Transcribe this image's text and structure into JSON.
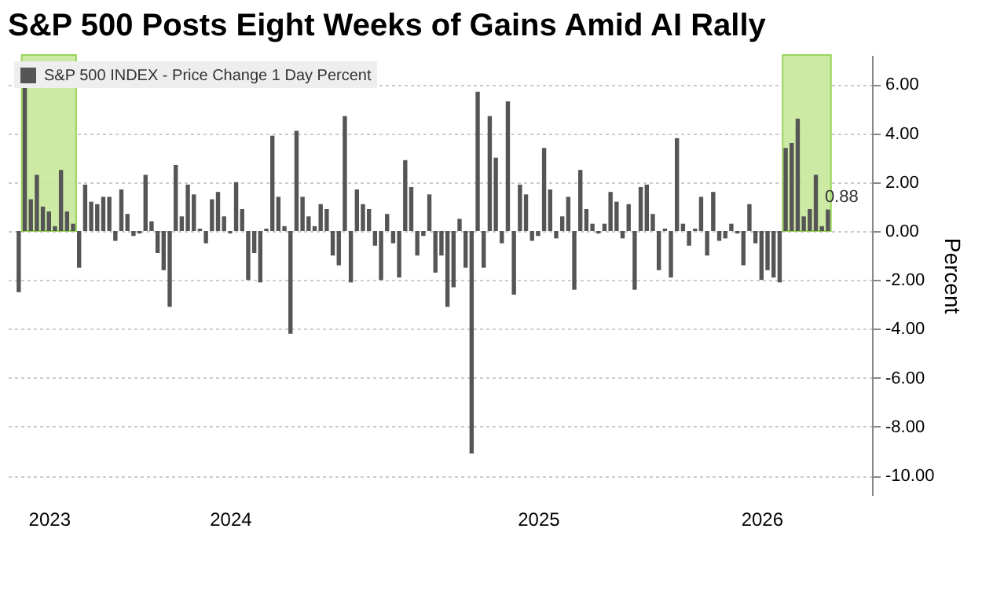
{
  "chart_data": {
    "type": "bar",
    "title": "S&P 500 Posts Eight Weeks of Gains Amid AI Rally",
    "ylabel": "Percent",
    "categories": [
      null,
      null,
      null,
      null,
      null,
      "2023",
      null,
      null,
      null,
      null,
      null,
      null,
      null,
      null,
      null,
      null,
      null,
      null,
      null,
      null,
      null,
      null,
      null,
      null,
      null,
      null,
      null,
      null,
      null,
      null,
      null,
      null,
      null,
      null,
      null,
      "2024",
      null,
      null,
      null,
      null,
      null,
      null,
      null,
      null,
      null,
      null,
      null,
      null,
      null,
      null,
      null,
      null,
      null,
      null,
      null,
      null,
      null,
      null,
      null,
      null,
      null,
      null,
      null,
      null,
      null,
      null,
      null,
      null,
      null,
      null,
      null,
      null,
      null,
      null,
      null,
      null,
      null,
      null,
      null,
      null,
      null,
      null,
      null,
      null,
      null,
      null,
      "2025",
      null,
      null,
      null,
      null,
      null,
      null,
      null,
      null,
      null,
      null,
      null,
      null,
      null,
      null,
      null,
      null,
      null,
      null,
      null,
      null,
      null,
      null,
      null,
      null,
      null,
      null,
      null,
      null,
      null,
      null,
      null,
      null,
      null,
      null,
      null,
      null,
      "2026",
      null,
      null,
      null,
      null,
      null,
      null,
      null,
      null,
      null,
      null,
      null
    ],
    "series": [
      {
        "name": "S&P 500 INDEX - Price Change 1 Day Percent",
        "color": "#555555",
        "values": [
          -2.5,
          5.9,
          1.3,
          2.3,
          1.0,
          0.8,
          0.2,
          2.5,
          0.8,
          0.3,
          -1.5,
          1.9,
          1.2,
          1.1,
          1.4,
          1.4,
          -0.4,
          1.7,
          0.7,
          -0.2,
          -0.1,
          2.3,
          0.4,
          -0.9,
          -1.6,
          -3.1,
          2.7,
          0.6,
          1.9,
          1.5,
          0.1,
          -0.5,
          1.3,
          1.6,
          0.6,
          -0.1,
          2.0,
          0.9,
          -2.0,
          -0.9,
          -2.1,
          0.1,
          3.9,
          1.4,
          0.2,
          -4.2,
          4.1,
          1.4,
          0.6,
          0.2,
          1.1,
          0.9,
          -1.0,
          -1.4,
          4.7,
          -2.1,
          1.7,
          1.1,
          0.9,
          -0.6,
          -2.0,
          0.7,
          -0.5,
          -1.9,
          2.9,
          1.8,
          -1.0,
          -0.2,
          1.5,
          -1.7,
          -1.0,
          -3.1,
          -2.3,
          0.5,
          -1.5,
          -9.1,
          5.7,
          -1.5,
          4.7,
          3.0,
          -0.5,
          5.3,
          -2.6,
          1.9,
          1.5,
          -0.4,
          -0.2,
          3.4,
          1.7,
          -0.3,
          0.6,
          1.4,
          -2.4,
          2.5,
          0.9,
          0.3,
          -0.1,
          0.3,
          1.6,
          1.2,
          -0.3,
          1.1,
          -2.4,
          1.8,
          1.9,
          0.7,
          -1.6,
          0.1,
          -1.9,
          3.8,
          0.3,
          -0.6,
          0.1,
          1.4,
          -1.0,
          1.6,
          -0.4,
          -0.3,
          0.3,
          -0.1,
          -1.4,
          1.1,
          -0.5,
          -2.0,
          -1.6,
          -1.9,
          -2.1,
          3.4,
          3.6,
          4.6,
          0.6,
          0.9,
          2.3,
          0.2,
          0.88
        ],
        "value_labels": [
          null,
          null,
          null,
          null,
          null,
          null,
          null,
          null,
          null,
          null,
          null,
          null,
          null,
          null,
          null,
          null,
          null,
          null,
          null,
          null,
          null,
          null,
          null,
          null,
          null,
          null,
          null,
          null,
          null,
          null,
          null,
          null,
          null,
          null,
          null,
          null,
          null,
          null,
          null,
          null,
          null,
          null,
          null,
          null,
          null,
          null,
          null,
          null,
          null,
          null,
          null,
          null,
          null,
          null,
          null,
          null,
          null,
          null,
          null,
          null,
          null,
          null,
          null,
          null,
          null,
          null,
          null,
          null,
          null,
          null,
          null,
          null,
          null,
          null,
          null,
          null,
          null,
          null,
          null,
          null,
          null,
          null,
          null,
          null,
          null,
          null,
          null,
          null,
          null,
          null,
          null,
          null,
          null,
          null,
          null,
          null,
          null,
          null,
          null,
          null,
          null,
          null,
          null,
          null,
          null,
          null,
          null,
          null,
          null,
          null,
          null,
          null,
          null,
          null,
          null,
          null,
          null,
          null,
          null,
          null,
          null,
          null,
          null,
          null,
          null,
          null,
          null,
          null,
          null,
          null,
          null,
          null,
          null,
          null,
          "0.88"
        ]
      }
    ],
    "ylim": [
      -10.8,
      7.2
    ],
    "yticks": [
      {
        "value": -10,
        "label": "-10.00"
      },
      {
        "value": -8,
        "label": "-8.00"
      },
      {
        "value": -6,
        "label": "-6.00"
      },
      {
        "value": -4,
        "label": "-4.00"
      },
      {
        "value": -2,
        "label": "-2.00"
      },
      {
        "value": 0,
        "label": "0.00"
      },
      {
        "value": 2,
        "label": "2.00"
      },
      {
        "value": 4,
        "label": "4.00"
      },
      {
        "value": 6,
        "label": "6.00"
      }
    ],
    "grid": "y",
    "legend": "top left"
  }
}
